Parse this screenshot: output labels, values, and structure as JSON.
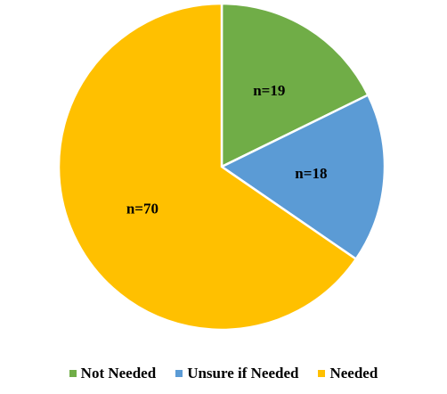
{
  "chart_data": {
    "type": "pie",
    "title": "",
    "slices": [
      {
        "label": "Not Needed",
        "value": 19,
        "data_label": "n=19",
        "color": "#70AD47"
      },
      {
        "label": "Unsure if Needed",
        "value": 18,
        "data_label": "n=18",
        "color": "#5B9BD5"
      },
      {
        "label": "Needed",
        "value": 70,
        "data_label": "n=70",
        "color": "#FFC000"
      }
    ],
    "start_angle_deg": 0,
    "direction": "clockwise",
    "legend_position": "bottom"
  }
}
